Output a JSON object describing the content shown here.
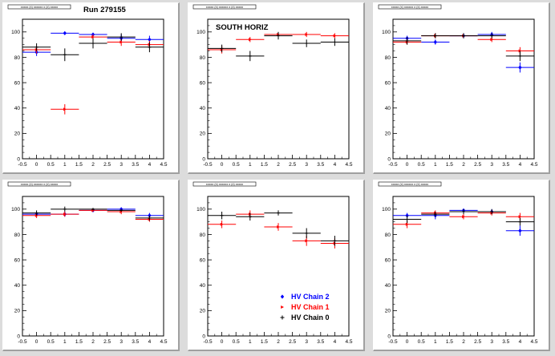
{
  "title": "Run 279155",
  "colors": {
    "chain2": "#0000ff",
    "chain1": "#ff0000",
    "chain0": "#000000",
    "frame": "#000000",
    "background": "#ffffff",
    "canvas": "#dcdcdc"
  },
  "legend": [
    {
      "name": "HV Chain 2",
      "color": "#0000ff",
      "marker": "diamond"
    },
    {
      "name": "HV Chain 1",
      "color": "#ff0000",
      "marker": "triangle"
    },
    {
      "name": "HV Chain 0",
      "color": "#000000",
      "marker": "cross"
    }
  ],
  "chart_data": [
    {
      "type": "scatter",
      "histo_title": "xxxxx (x) xxxxxx x (x) xxxxx",
      "annotation": "Run 279155",
      "xlim": [
        -0.5,
        4.5
      ],
      "ylim": [
        0,
        110
      ],
      "xticks": [
        "-0.5",
        "0",
        "0.5",
        "1",
        "1.5",
        "2",
        "2.5",
        "3",
        "3.5",
        "4",
        "4.5"
      ],
      "yticks": [
        "0",
        "20",
        "40",
        "60",
        "80",
        "100"
      ],
      "series": [
        {
          "color": "#0000ff",
          "marker": "diamond",
          "points": [
            {
              "x": 0,
              "y": 84,
              "err": 3
            },
            {
              "x": 1,
              "y": 99,
              "err": 1
            },
            {
              "x": 2,
              "y": 98,
              "err": 1
            },
            {
              "x": 3,
              "y": 95,
              "err": 3
            },
            {
              "x": 4,
              "y": 94,
              "err": 3
            }
          ]
        },
        {
          "color": "#ff0000",
          "marker": "triangle",
          "points": [
            {
              "x": 0,
              "y": 86,
              "err": 3
            },
            {
              "x": 1,
              "y": 39,
              "err": 4
            },
            {
              "x": 2,
              "y": 96,
              "err": 2
            },
            {
              "x": 3,
              "y": 92,
              "err": 3
            },
            {
              "x": 4,
              "y": 90,
              "err": 3
            }
          ]
        },
        {
          "color": "#000000",
          "marker": "cross",
          "points": [
            {
              "x": 0,
              "y": 88,
              "err": 3
            },
            {
              "x": 1,
              "y": 82,
              "err": 5
            },
            {
              "x": 2,
              "y": 91,
              "err": 4
            },
            {
              "x": 3,
              "y": 96,
              "err": 3
            },
            {
              "x": 4,
              "y": 88,
              "err": 4
            }
          ]
        }
      ]
    },
    {
      "type": "scatter",
      "histo_title": "xxxxx (x) xxxxxx x (x) xxxxx",
      "annotation": "SOUTH HORIZ",
      "xlim": [
        -0.5,
        4.5
      ],
      "ylim": [
        0,
        110
      ],
      "xticks": [
        "-0.5",
        "0",
        "0.5",
        "1",
        "1.5",
        "2",
        "2.5",
        "3",
        "3.5",
        "4",
        "4.5"
      ],
      "yticks": [
        "0",
        "20",
        "40",
        "60",
        "80",
        "100"
      ],
      "series": [
        {
          "color": "#ff0000",
          "marker": "triangle",
          "points": [
            {
              "x": 0,
              "y": 86,
              "err": 3
            },
            {
              "x": 1,
              "y": 94,
              "err": 2
            },
            {
              "x": 2,
              "y": 98,
              "err": 2
            },
            {
              "x": 3,
              "y": 98,
              "err": 2
            },
            {
              "x": 4,
              "y": 97,
              "err": 2
            }
          ]
        },
        {
          "color": "#000000",
          "marker": "cross",
          "points": [
            {
              "x": 0,
              "y": 87,
              "err": 3
            },
            {
              "x": 1,
              "y": 81,
              "err": 4
            },
            {
              "x": 2,
              "y": 97,
              "err": 3
            },
            {
              "x": 3,
              "y": 91,
              "err": 3
            },
            {
              "x": 4,
              "y": 92,
              "err": 3
            }
          ]
        }
      ]
    },
    {
      "type": "scatter",
      "histo_title": "xxxxx (x) xxxxxx x (x) xxxxx",
      "xlim": [
        -0.5,
        4.5
      ],
      "ylim": [
        0,
        110
      ],
      "xticks": [
        "-0.5",
        "0",
        "0.5",
        "1",
        "1.5",
        "2",
        "2.5",
        "3",
        "3.5",
        "4",
        "4.5"
      ],
      "yticks": [
        "0",
        "20",
        "40",
        "60",
        "80",
        "100"
      ],
      "series": [
        {
          "color": "#0000ff",
          "marker": "diamond",
          "points": [
            {
              "x": 0,
              "y": 95,
              "err": 2
            },
            {
              "x": 1,
              "y": 92,
              "err": 2
            },
            {
              "x": 2,
              "y": 97,
              "err": 2
            },
            {
              "x": 3,
              "y": 98,
              "err": 2
            },
            {
              "x": 4,
              "y": 72,
              "err": 4
            }
          ]
        },
        {
          "color": "#ff0000",
          "marker": "triangle",
          "points": [
            {
              "x": 0,
              "y": 92,
              "err": 2
            },
            {
              "x": 1,
              "y": 97,
              "err": 2
            },
            {
              "x": 2,
              "y": 97,
              "err": 2
            },
            {
              "x": 3,
              "y": 94,
              "err": 2
            },
            {
              "x": 4,
              "y": 85,
              "err": 3
            }
          ]
        },
        {
          "color": "#000000",
          "marker": "cross",
          "points": [
            {
              "x": 0,
              "y": 93,
              "err": 3
            },
            {
              "x": 1,
              "y": 97,
              "err": 2
            },
            {
              "x": 2,
              "y": 97,
              "err": 2
            },
            {
              "x": 3,
              "y": 97,
              "err": 2
            },
            {
              "x": 4,
              "y": 81,
              "err": 4
            }
          ]
        }
      ]
    },
    {
      "type": "scatter",
      "histo_title": "xxxxx (x) xxxxxx x (x) xxxxx",
      "xlim": [
        -0.5,
        4.5
      ],
      "ylim": [
        0,
        110
      ],
      "xticks": [
        "-0.5",
        "0",
        "0.5",
        "1",
        "1.5",
        "2",
        "2.5",
        "3",
        "3.5",
        "4",
        "4.5"
      ],
      "yticks": [
        "0",
        "20",
        "40",
        "60",
        "80",
        "100"
      ],
      "series": [
        {
          "color": "#0000ff",
          "marker": "diamond",
          "points": [
            {
              "x": 0,
              "y": 96,
              "err": 2
            },
            {
              "x": 1,
              "y": 96,
              "err": 2
            },
            {
              "x": 2,
              "y": 99,
              "err": 1
            },
            {
              "x": 3,
              "y": 100,
              "err": 1
            },
            {
              "x": 4,
              "y": 95,
              "err": 2
            }
          ]
        },
        {
          "color": "#ff0000",
          "marker": "triangle",
          "points": [
            {
              "x": 0,
              "y": 95,
              "err": 2
            },
            {
              "x": 1,
              "y": 96,
              "err": 2
            },
            {
              "x": 2,
              "y": 99,
              "err": 1
            },
            {
              "x": 3,
              "y": 98,
              "err": 2
            },
            {
              "x": 4,
              "y": 92,
              "err": 2
            }
          ]
        },
        {
          "color": "#000000",
          "marker": "cross",
          "points": [
            {
              "x": 0,
              "y": 97,
              "err": 2
            },
            {
              "x": 1,
              "y": 100,
              "err": 2
            },
            {
              "x": 2,
              "y": 100,
              "err": 1
            },
            {
              "x": 3,
              "y": 99,
              "err": 1
            },
            {
              "x": 4,
              "y": 93,
              "err": 2
            }
          ]
        }
      ]
    },
    {
      "type": "scatter",
      "histo_title": "xxxxx (x) xxxxxx x (x) xxxxx",
      "xlim": [
        -0.5,
        4.5
      ],
      "ylim": [
        0,
        110
      ],
      "xticks": [
        "-0.5",
        "0",
        "0.5",
        "1",
        "1.5",
        "2",
        "2.5",
        "3",
        "3.5",
        "4",
        "4.5"
      ],
      "yticks": [
        "0",
        "20",
        "40",
        "60",
        "80",
        "100"
      ],
      "show_legend": true,
      "series": [
        {
          "color": "#ff0000",
          "marker": "triangle",
          "points": [
            {
              "x": 0,
              "y": 88,
              "err": 3
            },
            {
              "x": 1,
              "y": 96,
              "err": 3
            },
            {
              "x": 2,
              "y": 86,
              "err": 3
            },
            {
              "x": 3,
              "y": 75,
              "err": 4
            },
            {
              "x": 4,
              "y": 73,
              "err": 4
            }
          ]
        },
        {
          "color": "#000000",
          "marker": "cross",
          "points": [
            {
              "x": 0,
              "y": 95,
              "err": 3
            },
            {
              "x": 1,
              "y": 94,
              "err": 3
            },
            {
              "x": 2,
              "y": 97,
              "err": 2
            },
            {
              "x": 3,
              "y": 81,
              "err": 4
            },
            {
              "x": 4,
              "y": 75,
              "err": 4
            }
          ]
        }
      ]
    },
    {
      "type": "scatter",
      "histo_title": "xxxxx (x) xxxxxx x (x) xxxxx",
      "xlim": [
        -0.5,
        4.5
      ],
      "ylim": [
        0,
        110
      ],
      "xticks": [
        "-0.5",
        "0",
        "0.5",
        "1",
        "1.5",
        "2",
        "2.5",
        "3",
        "3.5",
        "4",
        "4.5"
      ],
      "yticks": [
        "0",
        "20",
        "40",
        "60",
        "80",
        "100"
      ],
      "series": [
        {
          "color": "#0000ff",
          "marker": "diamond",
          "points": [
            {
              "x": 0,
              "y": 95,
              "err": 2
            },
            {
              "x": 1,
              "y": 95,
              "err": 3
            },
            {
              "x": 2,
              "y": 99,
              "err": 1
            },
            {
              "x": 3,
              "y": 98,
              "err": 2
            },
            {
              "x": 4,
              "y": 83,
              "err": 4
            }
          ]
        },
        {
          "color": "#ff0000",
          "marker": "triangle",
          "points": [
            {
              "x": 0,
              "y": 88,
              "err": 3
            },
            {
              "x": 1,
              "y": 97,
              "err": 2
            },
            {
              "x": 2,
              "y": 94,
              "err": 2
            },
            {
              "x": 3,
              "y": 97,
              "err": 2
            },
            {
              "x": 4,
              "y": 94,
              "err": 3
            }
          ]
        },
        {
          "color": "#000000",
          "marker": "cross",
          "points": [
            {
              "x": 0,
              "y": 92,
              "err": 3
            },
            {
              "x": 1,
              "y": 96,
              "err": 2
            },
            {
              "x": 2,
              "y": 98,
              "err": 2
            },
            {
              "x": 3,
              "y": 98,
              "err": 2
            },
            {
              "x": 4,
              "y": 90,
              "err": 3
            }
          ]
        }
      ]
    }
  ]
}
